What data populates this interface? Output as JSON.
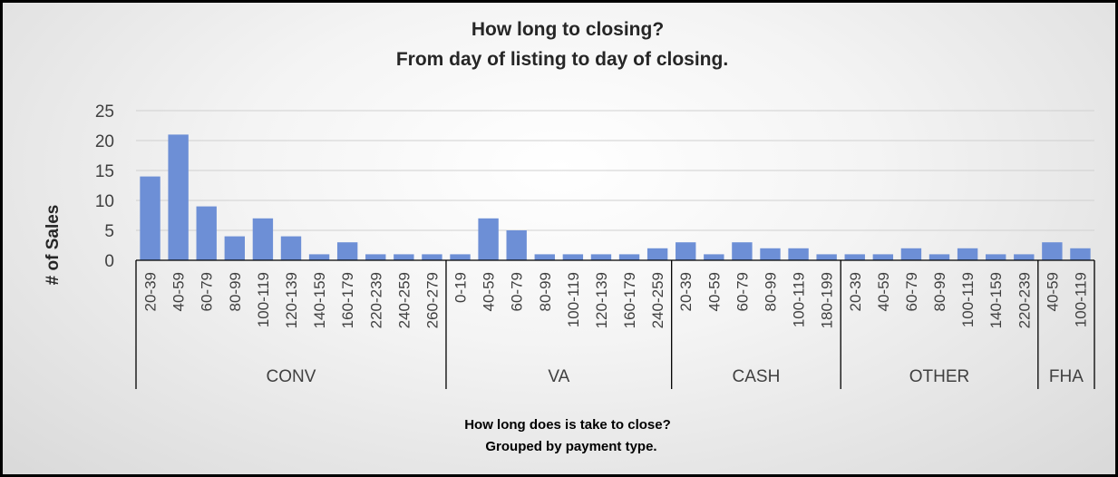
{
  "chart_data": {
    "type": "bar",
    "title": [
      "How long to closing?",
      "From day of listing to day of closing."
    ],
    "xlabel": [
      "How long does is take to close?",
      "Grouped by payment type."
    ],
    "ylabel": "# of Sales",
    "ylim": [
      0,
      25
    ],
    "yticks": [
      0,
      5,
      10,
      15,
      20,
      25
    ],
    "grid": true,
    "bar_color": "#6d8fd6",
    "groups": [
      {
        "name": "CONV",
        "categories": [
          "20-39",
          "40-59",
          "60-79",
          "80-99",
          "100-119",
          "120-139",
          "140-159",
          "160-179",
          "220-239",
          "240-259",
          "260-279"
        ],
        "values": [
          14,
          21,
          9,
          4,
          7,
          4,
          1,
          3,
          1,
          1,
          1
        ]
      },
      {
        "name": "VA",
        "categories": [
          "0-19",
          "40-59",
          "60-79",
          "80-99",
          "100-119",
          "120-139",
          "160-179",
          "240-259"
        ],
        "values": [
          1,
          7,
          5,
          1,
          1,
          1,
          1,
          2
        ]
      },
      {
        "name": "CASH",
        "categories": [
          "20-39",
          "40-59",
          "60-79",
          "80-99",
          "100-119",
          "180-199"
        ],
        "values": [
          3,
          1,
          3,
          2,
          2,
          1
        ]
      },
      {
        "name": "OTHER",
        "categories": [
          "20-39",
          "40-59",
          "60-79",
          "80-99",
          "100-119",
          "140-159",
          "220-239"
        ],
        "values": [
          1,
          1,
          2,
          1,
          2,
          1,
          1
        ]
      },
      {
        "name": "FHA",
        "categories": [
          "40-59",
          "100-119"
        ],
        "values": [
          3,
          2
        ]
      }
    ]
  }
}
